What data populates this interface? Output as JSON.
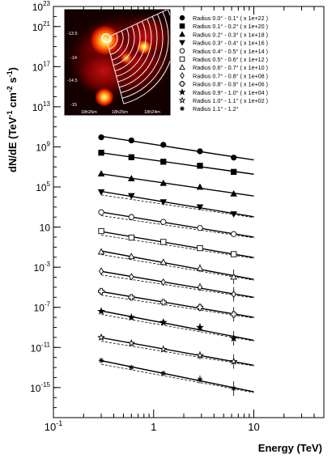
{
  "chart_data": {
    "type": "scatter",
    "xlabel": "Energy (TeV)",
    "ylabel_parts": [
      "dN/dE (TeV",
      "-1",
      " cm",
      "-2",
      " s",
      "-1",
      ")"
    ],
    "xscale": "log",
    "yscale": "log",
    "xlim": [
      0.1,
      50
    ],
    "ylim": [
      1e-18,
      1e+23
    ],
    "x_ticks": [
      {
        "v": 0.1,
        "label": "10",
        "sup": "-1"
      },
      {
        "v": 1,
        "label": "1",
        "sup": ""
      },
      {
        "v": 10,
        "label": "10",
        "sup": ""
      }
    ],
    "y_ticks": [
      {
        "v": 1e+23,
        "label": "10",
        "sup": "23"
      },
      {
        "v": 1e+21,
        "label": "10",
        "sup": "21"
      },
      {
        "v": 1e+17,
        "label": "10",
        "sup": "17"
      },
      {
        "v": 10000000000000.0,
        "label": "10",
        "sup": "13"
      },
      {
        "v": 1000000000.0,
        "label": "10",
        "sup": "9"
      },
      {
        "v": 100000.0,
        "label": "10",
        "sup": "5"
      },
      {
        "v": 10,
        "label": "10",
        "sup": ""
      },
      {
        "v": 0.001,
        "label": "10",
        "sup": "-3"
      },
      {
        "v": 1e-07,
        "label": "10",
        "sup": "-7"
      },
      {
        "v": 1e-11,
        "label": "10",
        "sup": "-11"
      },
      {
        "v": 1e-15,
        "label": "10",
        "sup": "-15"
      }
    ],
    "x_points": [
      0.3,
      0.6,
      1.25,
      2.9,
      6.3
    ],
    "fit_range": [
      0.3,
      10
    ],
    "series": [
      {
        "name": "Radius 0.0° - 0.1°  ( x 1e+22 )",
        "marker": "circle-filled",
        "values": [
          9000000000.0,
          4400000000.0,
          1600000000.0,
          360000000.0,
          85000000.0
        ]
      },
      {
        "name": "Radius 0.1° - 0.2°  ( x 1e+20 )",
        "marker": "square-filled",
        "values": [
          260000000.0,
          93000000.0,
          33000000.0,
          13000000.0,
          3200000.0
        ]
      },
      {
        "name": "Radius 0.2° - 0.3°  ( x 1e+18 )",
        "marker": "triangle-up-filled",
        "values": [
          2100000.0,
          700000.0,
          240000.0,
          100000.0,
          21000.0
        ]
      },
      {
        "name": "Radius 0.3° - 0.4°  ( x 1e+16 )",
        "marker": "triangle-down-filled",
        "values": [
          32000.0,
          13000.0,
          3200.0,
          1000.0,
          200.0
        ]
      },
      {
        "name": "Radius 0.4° - 0.5°  ( x 1e+14 )",
        "marker": "circle-open",
        "values": [
          300.0,
          100.0,
          33,
          8.0,
          2.0
        ]
      },
      {
        "name": "Radius 0.5° - 0.6°  ( x 1e+12 )",
        "marker": "square-open",
        "values": [
          4.0,
          0.9,
          0.33,
          0.08,
          0.02
        ]
      },
      {
        "name": "Radius 0.6° - 0.7°  ( x 1e+10 )",
        "marker": "triangle-up-open",
        "values": [
          0.035,
          0.012,
          0.0032,
          0.0008,
          0.00011
        ]
      },
      {
        "name": "Radius 0.7° - 0.8°  ( x 1e+08 )",
        "marker": "diamond-open",
        "values": [
          0.0004,
          0.00011,
          3.2e-05,
          1e-05,
          2e-06
        ]
      },
      {
        "name": "Radius 0.8° - 0.9°  ( x 1e+06 )",
        "marker": "cross-open",
        "values": [
          4e-06,
          1e-06,
          3.2e-07,
          1e-07,
          2e-08
        ]
      },
      {
        "name": "Radius 0.9° - 1.0°  ( x 1e+04 )",
        "marker": "star-filled",
        "values": [
          4e-08,
          1e-08,
          3.2e-09,
          1e-09,
          8e-11
        ]
      },
      {
        "name": "Radius 1.0° - 1.1°  ( x 1e+02 )",
        "marker": "star-open",
        "values": [
          1e-10,
          2.6e-11,
          6.5e-12,
          1.6e-12,
          4e-13
        ]
      },
      {
        "name": "Radius 1.1° - 1.2°",
        "marker": "asterisk",
        "values": [
          5e-13,
          1e-13,
          2.6e-14,
          6.5e-15,
          8e-16
        ]
      }
    ],
    "inset": {
      "dec_labels": [
        "-13.5",
        "-14",
        "-14.5",
        "-15"
      ],
      "ra_labels": [
        "18h26m",
        "18h25m",
        "18h24m"
      ]
    }
  }
}
